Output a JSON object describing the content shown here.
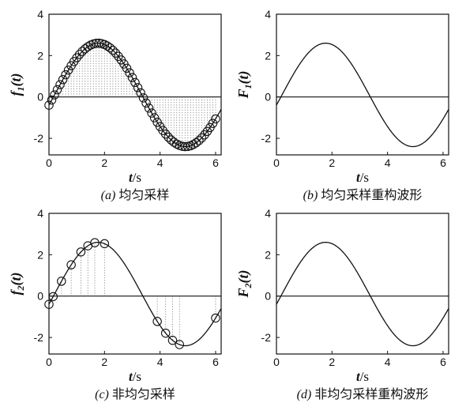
{
  "chart_data": [
    {
      "type": "line",
      "panel": "a",
      "caption_letter": "(a)",
      "caption_text": "均匀采样",
      "ylabel": "f1(t)",
      "ylabel_main": "f",
      "ylabel_sub": "1",
      "ylabel_arg": "(t)",
      "xlabel_var": "t",
      "xlabel_unit": "/s",
      "xlim": [
        0,
        6.2
      ],
      "ylim": [
        -2.8,
        4
      ],
      "xticks": [
        0,
        2,
        4,
        6
      ],
      "yticks": [
        -2,
        0,
        2,
        4
      ],
      "series": [
        {
          "kind": "curve",
          "formula": "0.1 + 2.5*sin(t - 0.2)",
          "t_range": [
            0,
            6.2
          ]
        },
        {
          "kind": "samples",
          "marker": "circle",
          "stems": true,
          "spacing": "uniform",
          "t_start": 0,
          "t_end": 6.0,
          "step": 0.1
        }
      ]
    },
    {
      "type": "line",
      "panel": "b",
      "caption_letter": "(b)",
      "caption_text": "均匀采样重构波形",
      "ylabel": "F1(t)",
      "ylabel_main": "F",
      "ylabel_sub": "1",
      "ylabel_arg": "(t)",
      "xlabel_var": "t",
      "xlabel_unit": "/s",
      "xlim": [
        0,
        6.2
      ],
      "ylim": [
        -2.8,
        4
      ],
      "xticks": [
        0,
        2,
        4,
        6
      ],
      "yticks": [
        -2,
        0,
        2,
        4
      ],
      "series": [
        {
          "kind": "curve",
          "formula": "0.1 + 2.5*sin(t - 0.2)",
          "t_range": [
            0,
            6.2
          ]
        }
      ]
    },
    {
      "type": "line",
      "panel": "c",
      "caption_letter": "(c)",
      "caption_text": "非均匀采样",
      "ylabel": "f2(t)",
      "ylabel_main": "f",
      "ylabel_sub": "2",
      "ylabel_arg": "(t)",
      "xlabel_var": "t",
      "xlabel_unit": "/s",
      "xlim": [
        0,
        6.2
      ],
      "ylim": [
        -2.8,
        4
      ],
      "xticks": [
        0,
        2,
        4,
        6
      ],
      "yticks": [
        -2,
        0,
        2,
        4
      ],
      "series": [
        {
          "kind": "curve",
          "formula": "0.1 + 2.5*sin(t - 0.2)",
          "t_range": [
            0,
            6.2
          ]
        },
        {
          "kind": "samples",
          "marker": "circle",
          "stems": true,
          "spacing": "non-uniform",
          "t": [
            0,
            0.15,
            0.45,
            0.8,
            1.15,
            1.4,
            1.65,
            2.0,
            3.9,
            4.2,
            4.45,
            4.7,
            6.0
          ]
        }
      ]
    },
    {
      "type": "line",
      "panel": "d",
      "caption_letter": "(d)",
      "caption_text": "非均匀采样重构波形",
      "ylabel": "F2(t)",
      "ylabel_main": "F",
      "ylabel_sub": "2",
      "ylabel_arg": "(t)",
      "xlabel_var": "t",
      "xlabel_unit": "/s",
      "xlim": [
        0,
        6.2
      ],
      "ylim": [
        -2.8,
        4
      ],
      "xticks": [
        0,
        2,
        4,
        6
      ],
      "yticks": [
        -2,
        0,
        2,
        4
      ],
      "series": [
        {
          "kind": "curve",
          "formula": "0.1 + 2.5*sin(t - 0.2)",
          "t_range": [
            0,
            6.2
          ]
        }
      ]
    }
  ]
}
